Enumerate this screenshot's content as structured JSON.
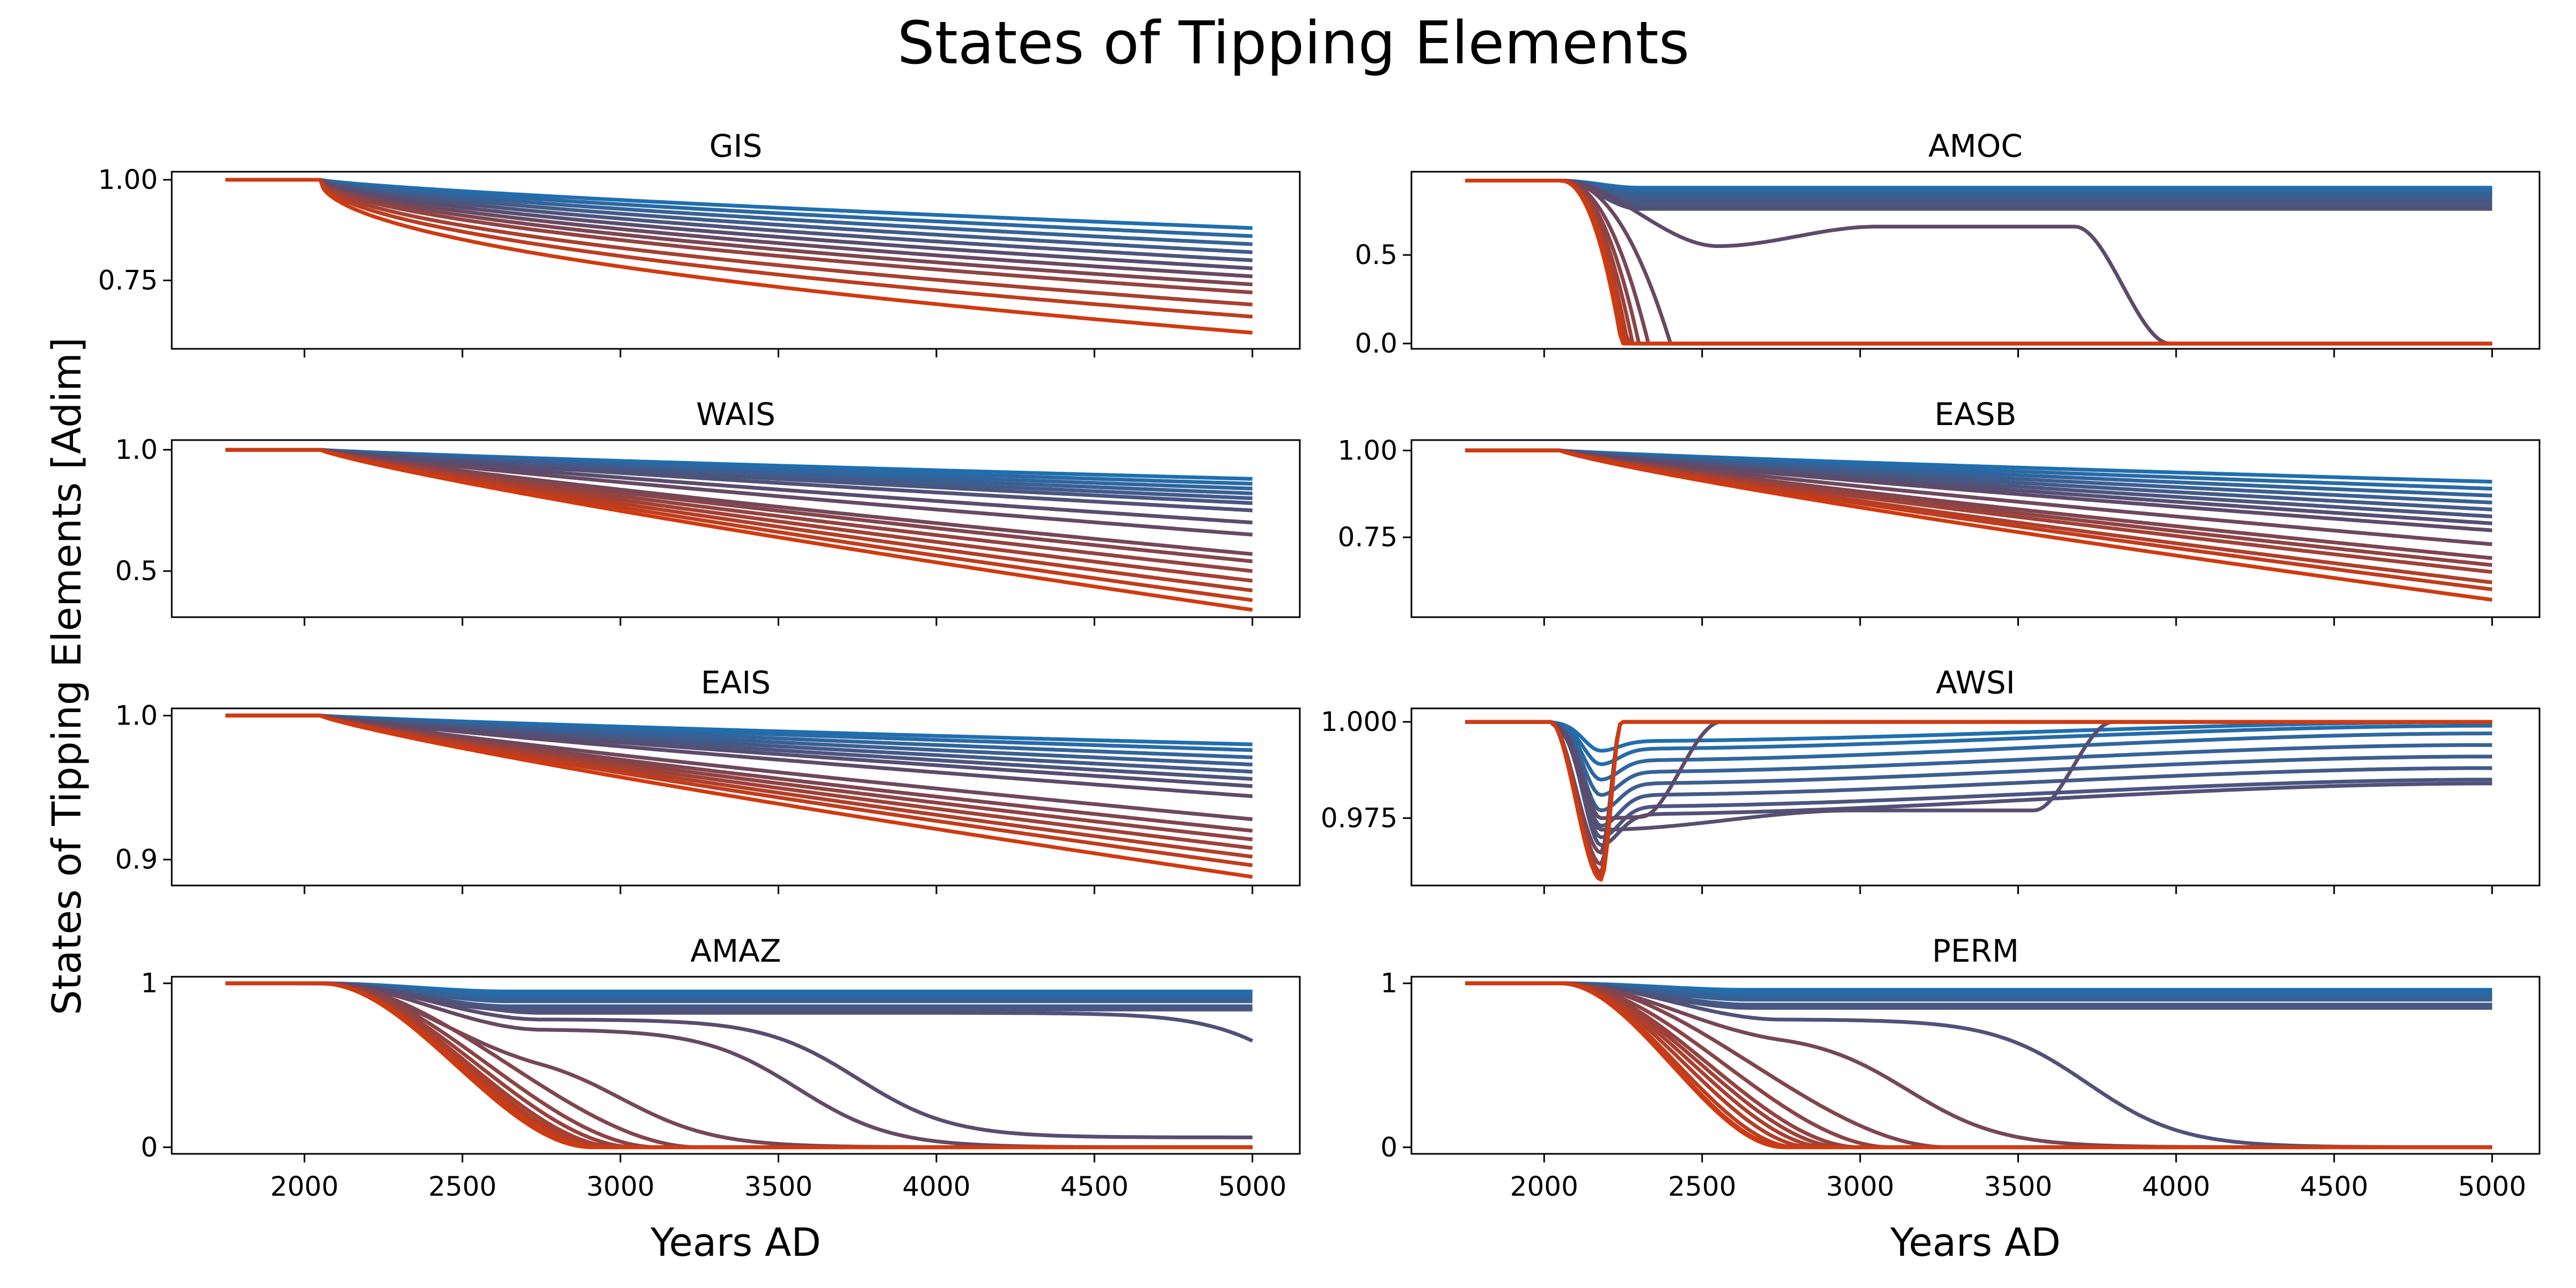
{
  "figure": {
    "title": "States of Tipping Elements",
    "ylabel": "States of Tipping Elements [Adim]",
    "xlabel": "Years AD"
  },
  "colors": {
    "low": "#1f6fb0",
    "mid": "#5e4a6a",
    "high": "#d13a10"
  },
  "chart_data": [
    {
      "type": "line",
      "title": "GIS",
      "xlabel": "",
      "ylabel": "",
      "xlim": [
        1580,
        5150
      ],
      "xticks": [
        2000,
        2500,
        3000,
        3500,
        4000,
        4500,
        5000
      ],
      "ylim": [
        0.58,
        1.02
      ],
      "yticks": [
        0.75,
        1.0
      ],
      "ytick_labels": [
        "0.75",
        "1.00"
      ],
      "family": "gis",
      "x_range": [
        1750,
        5000
      ],
      "series_count": 12,
      "end_values": [
        0.88,
        0.86,
        0.84,
        0.82,
        0.8,
        0.78,
        0.76,
        0.74,
        0.72,
        0.69,
        0.66,
        0.62
      ]
    },
    {
      "type": "line",
      "title": "AMOC",
      "xlabel": "",
      "ylabel": "",
      "xlim": [
        1580,
        5150
      ],
      "xticks": [
        2000,
        2500,
        3000,
        3500,
        4000,
        4500,
        5000
      ],
      "ylim": [
        -0.03,
        0.97
      ],
      "yticks": [
        0.0,
        0.5
      ],
      "ytick_labels": [
        "0.0",
        "0.5"
      ],
      "family": "amoc",
      "x_range": [
        1750,
        5000
      ],
      "series_count": 14,
      "stable_levels": [
        0.88,
        0.87,
        0.86,
        0.85,
        0.84,
        0.83,
        0.82,
        0.8,
        0.78,
        0.76
      ],
      "dip_curve": {
        "min": 0.55,
        "min_year": 2550,
        "plateau": 0.66,
        "collapse_year": 3980
      },
      "collapse_years": [
        2400,
        2330,
        2300,
        2280,
        2265,
        2255,
        2245
      ]
    },
    {
      "type": "line",
      "title": "WAIS",
      "xlabel": "",
      "ylabel": "",
      "xlim": [
        1580,
        5150
      ],
      "xticks": [
        2000,
        2500,
        3000,
        3500,
        4000,
        4500,
        5000
      ],
      "ylim": [
        0.31,
        1.04
      ],
      "yticks": [
        0.5,
        1.0
      ],
      "ytick_labels": [
        "0.5",
        "1.0"
      ],
      "family": "decline",
      "x_range": [
        1750,
        5000
      ],
      "series_count": 16,
      "end_values": [
        0.88,
        0.86,
        0.84,
        0.82,
        0.8,
        0.78,
        0.75,
        0.7,
        0.65,
        0.57,
        0.54,
        0.5,
        0.46,
        0.42,
        0.38,
        0.34
      ]
    },
    {
      "type": "line",
      "title": "EASB",
      "xlabel": "",
      "ylabel": "",
      "xlim": [
        1580,
        5150
      ],
      "xticks": [
        2000,
        2500,
        3000,
        3500,
        4000,
        4500,
        5000
      ],
      "ylim": [
        0.52,
        1.03
      ],
      "yticks": [
        0.75,
        1.0
      ],
      "ytick_labels": [
        "0.75",
        "1.00"
      ],
      "family": "decline",
      "x_range": [
        1750,
        5000
      ],
      "series_count": 15,
      "end_values": [
        0.91,
        0.89,
        0.87,
        0.85,
        0.83,
        0.81,
        0.79,
        0.77,
        0.73,
        0.69,
        0.67,
        0.65,
        0.62,
        0.6,
        0.57
      ]
    },
    {
      "type": "line",
      "title": "EAIS",
      "xlabel": "",
      "ylabel": "",
      "xlim": [
        1580,
        5150
      ],
      "xticks": [
        2000,
        2500,
        3000,
        3500,
        4000,
        4500,
        5000
      ],
      "ylim": [
        0.882,
        1.005
      ],
      "yticks": [
        0.9,
        1.0
      ],
      "ytick_labels": [
        "0.9",
        "1.0"
      ],
      "family": "decline",
      "x_range": [
        1750,
        5000
      ],
      "series_count": 15,
      "end_values": [
        0.98,
        0.976,
        0.971,
        0.966,
        0.961,
        0.956,
        0.951,
        0.944,
        0.928,
        0.92,
        0.914,
        0.908,
        0.902,
        0.896,
        0.888
      ]
    },
    {
      "type": "line",
      "title": "AWSI",
      "xlabel": "",
      "ylabel": "",
      "xlim": [
        1580,
        5150
      ],
      "xticks": [
        2000,
        2500,
        3000,
        3500,
        4000,
        4500,
        5000
      ],
      "ylim": [
        0.9575,
        1.0035
      ],
      "yticks": [
        0.975,
        1.0
      ],
      "ytick_labels": [
        "0.975",
        "1.000"
      ],
      "family": "awsi",
      "x_range": [
        1750,
        5000
      ],
      "dip_curves": [
        {
          "min": 0.9925,
          "start": 0.995,
          "end": 1.0
        },
        {
          "min": 0.989,
          "start": 0.993,
          "end": 0.999
        },
        {
          "min": 0.985,
          "start": 0.99,
          "end": 0.997
        },
        {
          "min": 0.981,
          "start": 0.987,
          "end": 0.994
        },
        {
          "min": 0.977,
          "start": 0.984,
          "end": 0.991
        },
        {
          "min": 0.973,
          "start": 0.981,
          "end": 0.988
        },
        {
          "min": 0.97,
          "start": 0.978,
          "end": 0.985
        },
        {
          "min": 0.968,
          "start": 0.976,
          "end": 0.984
        }
      ],
      "recover_curves": [
        {
          "min": 0.972,
          "recover_year": 3800
        },
        {
          "min": 0.975,
          "recover_year": 2560
        }
      ],
      "spike_curves": [
        0.966,
        0.963,
        0.961,
        0.96,
        0.959
      ]
    },
    {
      "type": "line",
      "title": "AMAZ",
      "xlabel": "Years AD",
      "ylabel": "",
      "xlim": [
        1580,
        5150
      ],
      "xticks": [
        2000,
        2500,
        3000,
        3500,
        4000,
        4500,
        5000
      ],
      "xtick_labels": [
        "2000",
        "2500",
        "3000",
        "3500",
        "4000",
        "4500",
        "5000"
      ],
      "ylim": [
        -0.04,
        1.04
      ],
      "yticks": [
        0,
        1
      ],
      "ytick_labels": [
        "0",
        "1"
      ],
      "family": "collapse",
      "x_range": [
        1750,
        5000
      ],
      "stable_levels": [
        0.95,
        0.93,
        0.91,
        0.89,
        0.86,
        0.84
      ],
      "sigmoid_curves": [
        {
          "plateau": 0.82,
          "mid": 5200,
          "floor": 0.0
        },
        {
          "plateau": 0.78,
          "mid": 3750,
          "floor": 0.06
        },
        {
          "plateau": 0.72,
          "mid": 3560,
          "floor": 0.0
        },
        {
          "plateau": 0.6,
          "mid": 3000,
          "floor": 0.0
        }
      ],
      "collapse_ends": [
        3250,
        3120,
        3050,
        3000,
        2970,
        2950,
        2930,
        2910
      ]
    },
    {
      "type": "line",
      "title": "PERM",
      "xlabel": "Years AD",
      "ylabel": "",
      "xlim": [
        1580,
        5150
      ],
      "xticks": [
        2000,
        2500,
        3000,
        3500,
        4000,
        4500,
        5000
      ],
      "xtick_labels": [
        "2000",
        "2500",
        "3000",
        "3500",
        "4000",
        "4500",
        "5000"
      ],
      "ylim": [
        -0.04,
        1.04
      ],
      "yticks": [
        0,
        1
      ],
      "ytick_labels": [
        "0",
        "1"
      ],
      "family": "collapse",
      "x_range": [
        1750,
        5000
      ],
      "stable_levels": [
        0.96,
        0.94,
        0.92,
        0.9,
        0.87,
        0.85
      ],
      "sigmoid_curves": [
        {
          "plateau": 0.78,
          "mid": 3720,
          "floor": 0.0
        },
        {
          "plateau": 0.7,
          "mid": 3150,
          "floor": 0.0
        }
      ],
      "collapse_ends": [
        3280,
        3100,
        3000,
        2950,
        2900,
        2850,
        2800,
        2770,
        2760
      ]
    }
  ]
}
